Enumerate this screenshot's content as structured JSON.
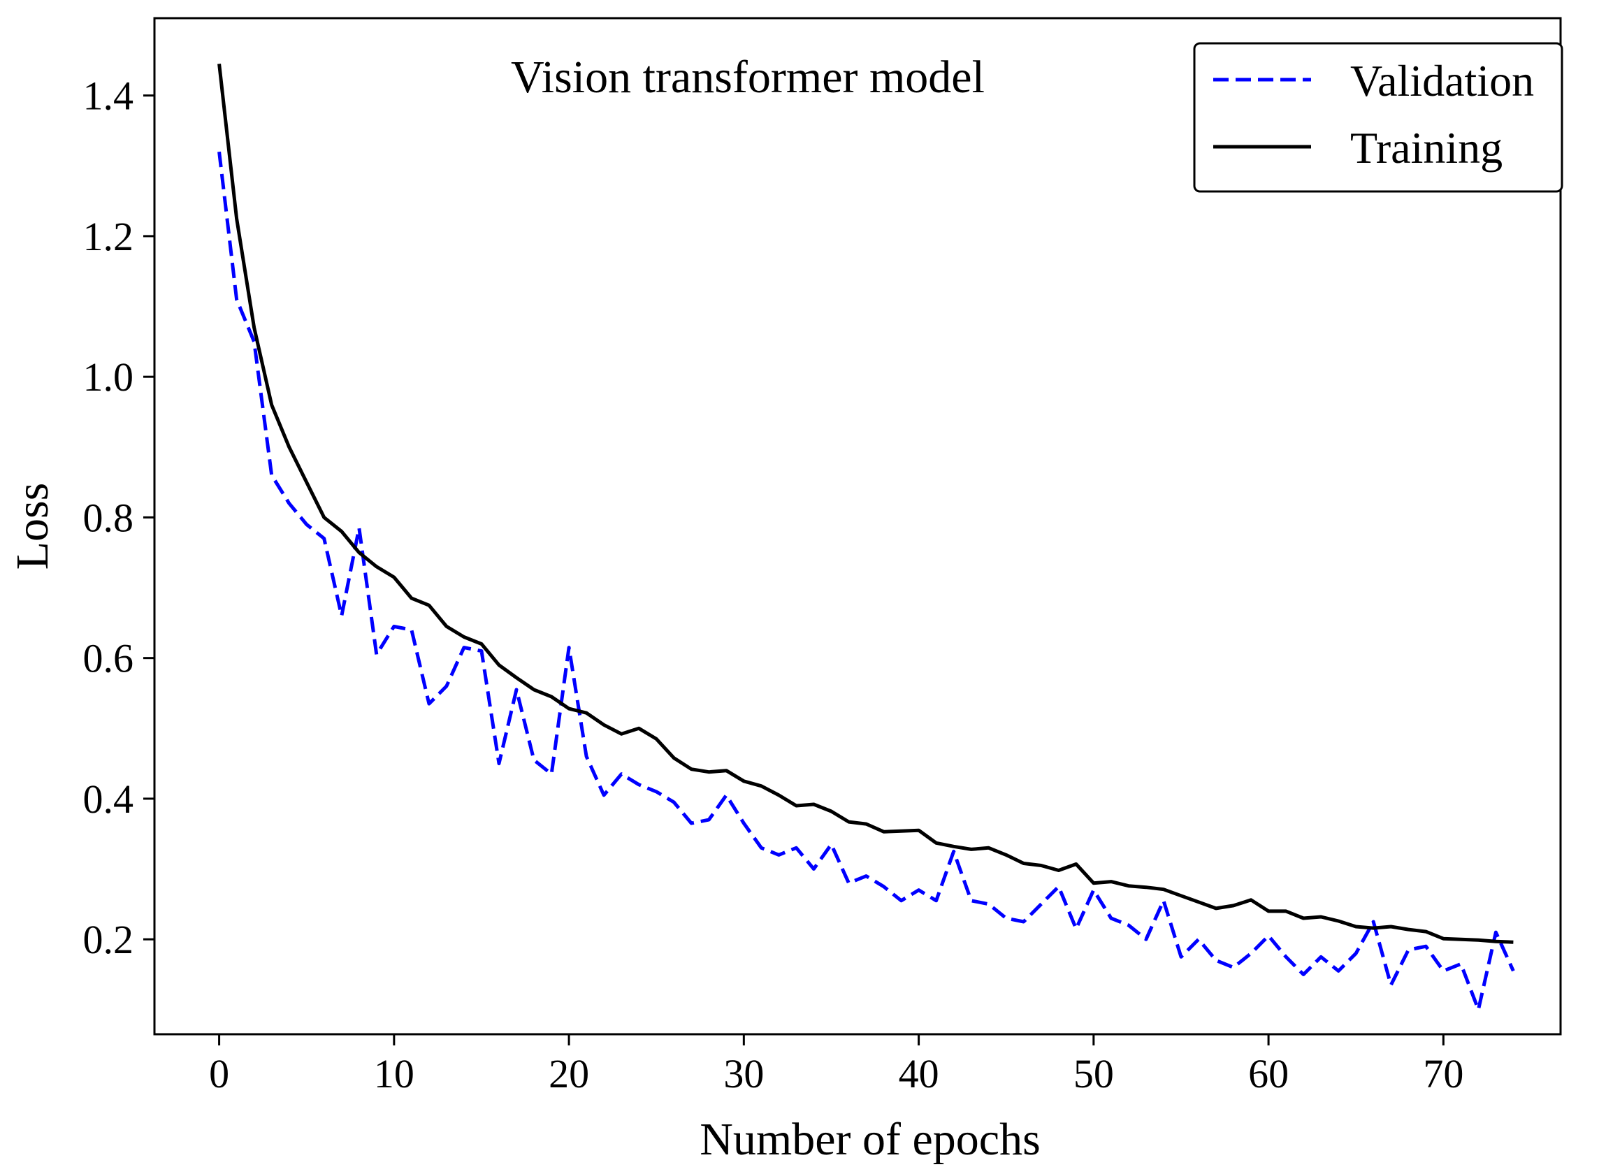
{
  "chart_data": {
    "type": "line",
    "title": "Vision transformer model",
    "xlabel": "Number of epochs",
    "ylabel": "Loss",
    "xlim": [
      -3.7,
      76.7
    ],
    "ylim": [
      0.065,
      1.51
    ],
    "xticks": [
      0,
      10,
      20,
      30,
      40,
      50,
      60,
      70
    ],
    "yticks": [
      0.2,
      0.4,
      0.6,
      0.8,
      1.0,
      1.2,
      1.4
    ],
    "ytick_labels": [
      "0.2",
      "0.4",
      "0.6",
      "0.8",
      "1.0",
      "1.2",
      "1.4"
    ],
    "legend_position": "top-right",
    "series": [
      {
        "name": "Validation",
        "style": "dashed",
        "color": "#0000ff",
        "x": [
          0,
          1,
          2,
          3,
          4,
          5,
          6,
          7,
          8,
          9,
          10,
          11,
          12,
          13,
          14,
          15,
          16,
          17,
          18,
          19,
          20,
          21,
          22,
          23,
          24,
          25,
          26,
          27,
          28,
          29,
          30,
          31,
          32,
          33,
          34,
          35,
          36,
          37,
          38,
          39,
          40,
          41,
          42,
          43,
          44,
          45,
          46,
          47,
          48,
          49,
          50,
          51,
          52,
          53,
          54,
          55,
          56,
          57,
          58,
          59,
          60,
          61,
          62,
          63,
          64,
          65,
          66,
          67,
          68,
          69,
          70,
          71,
          72,
          73,
          74
        ],
        "values": [
          1.32,
          1.11,
          1.05,
          0.86,
          0.82,
          0.79,
          0.77,
          0.66,
          0.785,
          0.605,
          0.645,
          0.64,
          0.535,
          0.56,
          0.615,
          0.61,
          0.45,
          0.555,
          0.455,
          0.435,
          0.615,
          0.46,
          0.405,
          0.435,
          0.42,
          0.41,
          0.395,
          0.365,
          0.37,
          0.405,
          0.365,
          0.33,
          0.32,
          0.33,
          0.3,
          0.335,
          0.28,
          0.29,
          0.275,
          0.255,
          0.27,
          0.255,
          0.325,
          0.255,
          0.25,
          0.23,
          0.225,
          0.25,
          0.275,
          0.215,
          0.27,
          0.23,
          0.22,
          0.2,
          0.255,
          0.175,
          0.2,
          0.17,
          0.16,
          0.18,
          0.205,
          0.175,
          0.15,
          0.175,
          0.155,
          0.18,
          0.225,
          0.135,
          0.185,
          0.19,
          0.155,
          0.165,
          0.1,
          0.21,
          0.155
        ]
      },
      {
        "name": "Training",
        "style": "solid",
        "color": "#000000",
        "x": [
          0,
          1,
          2,
          3,
          4,
          5,
          6,
          7,
          8,
          9,
          10,
          11,
          12,
          13,
          14,
          15,
          16,
          17,
          18,
          19,
          20,
          21,
          22,
          23,
          24,
          25,
          26,
          27,
          28,
          29,
          30,
          31,
          32,
          33,
          34,
          35,
          36,
          37,
          38,
          39,
          40,
          41,
          42,
          43,
          44,
          45,
          46,
          47,
          48,
          49,
          50,
          51,
          52,
          53,
          54,
          55,
          56,
          57,
          58,
          59,
          60,
          61,
          62,
          63,
          64,
          65,
          66,
          67,
          68,
          69,
          70,
          71,
          72,
          73,
          74
        ],
        "values": [
          1.445,
          1.225,
          1.07,
          0.96,
          0.9,
          0.85,
          0.8,
          0.78,
          0.75,
          0.73,
          0.715,
          0.685,
          0.675,
          0.645,
          0.63,
          0.62,
          0.59,
          0.572,
          0.555,
          0.545,
          0.528,
          0.522,
          0.505,
          0.492,
          0.5,
          0.485,
          0.458,
          0.442,
          0.438,
          0.44,
          0.425,
          0.418,
          0.405,
          0.39,
          0.392,
          0.382,
          0.367,
          0.364,
          0.353,
          0.354,
          0.355,
          0.337,
          0.332,
          0.328,
          0.33,
          0.32,
          0.308,
          0.305,
          0.298,
          0.307,
          0.28,
          0.282,
          0.276,
          0.274,
          0.271,
          0.262,
          0.253,
          0.244,
          0.248,
          0.256,
          0.24,
          0.24,
          0.23,
          0.232,
          0.226,
          0.218,
          0.216,
          0.218,
          0.214,
          0.211,
          0.201,
          0.2,
          0.199,
          0.197,
          0.196
        ]
      }
    ]
  }
}
